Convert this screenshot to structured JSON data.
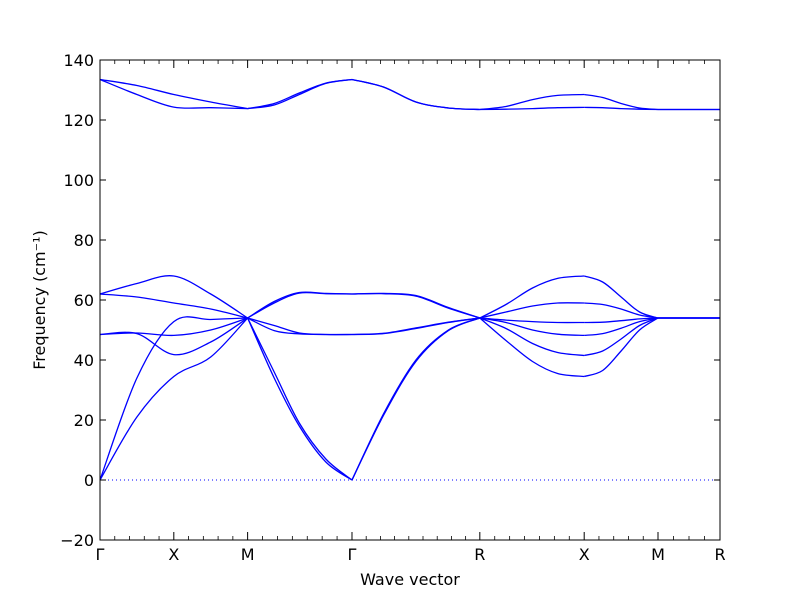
{
  "chart_data": {
    "type": "line",
    "xlabel": "Wave vector",
    "ylabel": "Frequency (cm⁻¹)",
    "ylim": [
      -20,
      140
    ],
    "yticks": [
      -20,
      0,
      20,
      40,
      60,
      80,
      100,
      120,
      140
    ],
    "ytick_labels": [
      "−20",
      "0",
      "20",
      "40",
      "60",
      "80",
      "100",
      "120",
      "140"
    ],
    "high_symmetry_points": [
      {
        "label": "Γ",
        "x": 0.0
      },
      {
        "label": "X",
        "x": 0.5
      },
      {
        "label": "M",
        "x": 1.0
      },
      {
        "label": "Γ",
        "x": 1.707
      },
      {
        "label": "R",
        "x": 2.573
      },
      {
        "label": "X",
        "x": 3.28
      },
      {
        "label": "M",
        "x": 3.78
      },
      {
        "label": "R",
        "x": 4.2
      }
    ],
    "xlim": [
      0,
      4.2
    ],
    "zero_line": {
      "y": 0,
      "style": "dotted"
    },
    "grid": false,
    "legend": "none",
    "line_color": "#0000ff",
    "segments": [
      {
        "x": [
          0,
          0.25,
          0.5,
          0.75,
          1.0
        ],
        "series": [
          [
            133.5,
            131.5,
            128.5,
            126,
            123.8
          ],
          [
            133.5,
            128.5,
            124.3,
            124.1,
            123.8
          ],
          [
            62,
            65.5,
            68,
            62,
            54
          ],
          [
            62,
            61,
            59,
            57,
            54
          ],
          [
            48.5,
            49,
            48.2,
            50,
            54
          ],
          [
            48.5,
            48.8,
            41.8,
            46,
            54
          ],
          [
            0,
            34,
            52.8,
            53.5,
            54
          ],
          [
            0,
            21,
            34.5,
            41,
            54
          ]
        ]
      },
      {
        "x": [
          1.0,
          1.18,
          1.35,
          1.53,
          1.707
        ],
        "series": [
          [
            123.8,
            125,
            128.5,
            132.2,
            133.5
          ],
          [
            123.8,
            125.5,
            129,
            132.3,
            133.5
          ],
          [
            54,
            59.5,
            62.5,
            62.2,
            62
          ],
          [
            54,
            59,
            62.3,
            62.1,
            62
          ],
          [
            54,
            51.5,
            49,
            48.5,
            48.5
          ],
          [
            54,
            49.8,
            48.7,
            48.5,
            48.5
          ],
          [
            54,
            36,
            19,
            7,
            0
          ],
          [
            54,
            34,
            18,
            6,
            0
          ]
        ]
      },
      {
        "x": [
          1.707,
          1.92,
          2.14,
          2.36,
          2.573
        ],
        "series": [
          [
            133.5,
            131,
            126,
            124,
            123.5
          ],
          [
            133.5,
            131,
            126,
            124,
            123.5
          ],
          [
            62,
            62.2,
            61.5,
            57.5,
            54
          ],
          [
            62,
            62.1,
            61.3,
            57.3,
            54
          ],
          [
            48.5,
            48.8,
            50.5,
            52.5,
            54
          ],
          [
            48.5,
            48.9,
            50.7,
            52.6,
            54
          ],
          [
            0,
            22,
            40,
            50,
            54
          ],
          [
            0,
            21.5,
            39.5,
            49.8,
            54
          ]
        ]
      },
      {
        "x": [
          2.573,
          2.75,
          2.93,
          3.1,
          3.28
        ],
        "series": [
          [
            123.5,
            124.5,
            126.8,
            128.2,
            128.5
          ],
          [
            123.5,
            123.6,
            123.8,
            124.1,
            124.2
          ],
          [
            54,
            58.5,
            64,
            67.2,
            68
          ],
          [
            54,
            56,
            58,
            59,
            59
          ],
          [
            54,
            53.3,
            52.8,
            52.5,
            52.5
          ],
          [
            54,
            52.5,
            50,
            48.6,
            48.2
          ],
          [
            54,
            50.5,
            45.5,
            42.5,
            41.5
          ],
          [
            54,
            46.5,
            39.5,
            35.5,
            34.5
          ]
        ]
      },
      {
        "x": [
          3.28,
          3.405,
          3.53,
          3.655,
          3.78
        ],
        "series": [
          [
            128.5,
            127.5,
            125.5,
            124,
            123.5
          ],
          [
            124.2,
            124.1,
            123.8,
            123.6,
            123.5
          ],
          [
            68,
            66,
            61,
            56,
            54
          ],
          [
            59,
            58.5,
            57,
            55,
            54
          ],
          [
            52.5,
            52.6,
            53.1,
            53.7,
            54
          ],
          [
            48.2,
            48.8,
            50.6,
            52.8,
            54
          ],
          [
            41.5,
            43,
            47,
            51.5,
            54
          ],
          [
            34.5,
            36.5,
            43,
            50,
            54
          ]
        ]
      },
      {
        "x": [
          3.78,
          4.2
        ],
        "series": [
          [
            123.5,
            123.5
          ],
          [
            123.5,
            123.5
          ],
          [
            54,
            54
          ],
          [
            54,
            54
          ],
          [
            54,
            54
          ],
          [
            54,
            54
          ],
          [
            54,
            54
          ],
          [
            54,
            54
          ]
        ]
      }
    ]
  }
}
